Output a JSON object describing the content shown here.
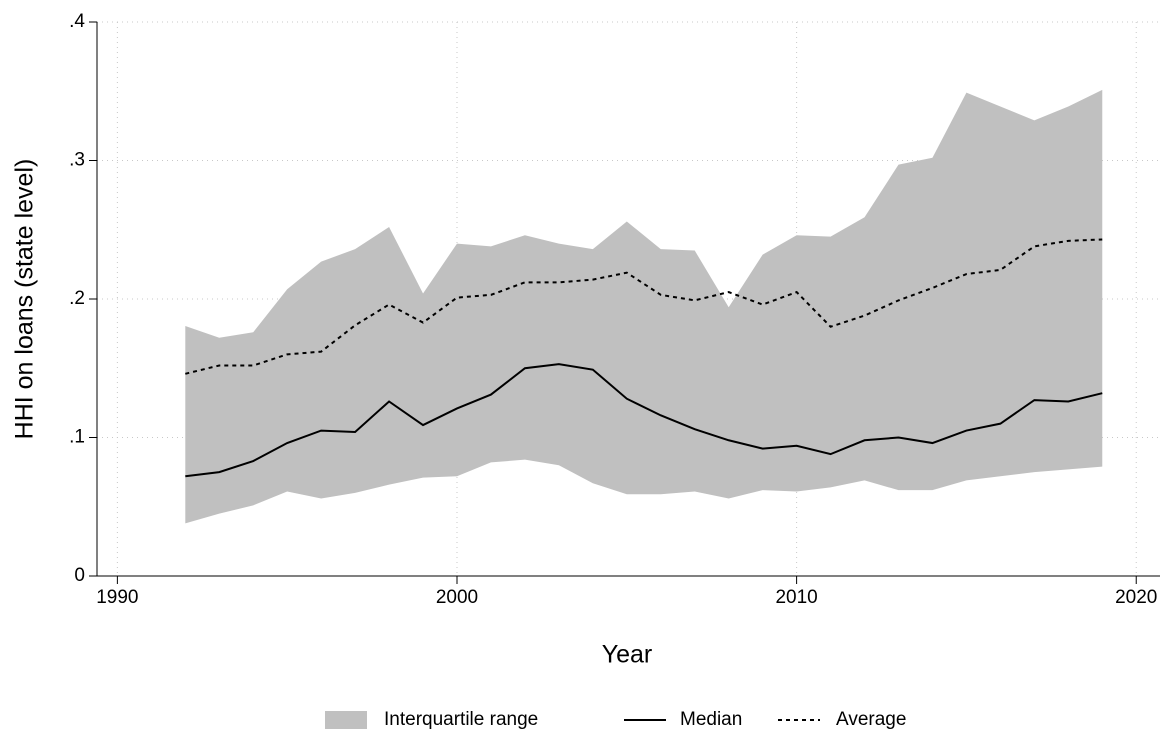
{
  "chart_data": {
    "type": "line",
    "x_label": "Year",
    "y_label": "HHI on loans (state level)",
    "x": [
      1992,
      1993,
      1994,
      1995,
      1996,
      1997,
      1998,
      1999,
      2000,
      2001,
      2002,
      2003,
      2004,
      2005,
      2006,
      2007,
      2008,
      2009,
      2010,
      2011,
      2012,
      2013,
      2014,
      2015,
      2016,
      2017,
      2018,
      2019
    ],
    "series": [
      {
        "name": "Interquartile range",
        "type": "band",
        "color": "#c0c0c0",
        "high": [
          0.1805,
          0.172,
          0.176,
          0.207,
          0.227,
          0.236,
          0.252,
          0.204,
          0.24,
          0.238,
          0.246,
          0.24,
          0.236,
          0.256,
          0.236,
          0.235,
          0.194,
          0.232,
          0.246,
          0.245,
          0.259,
          0.297,
          0.302,
          0.349,
          0.339,
          0.329,
          0.339,
          0.351
        ],
        "low": [
          0.038,
          0.045,
          0.051,
          0.061,
          0.056,
          0.06,
          0.066,
          0.071,
          0.072,
          0.082,
          0.084,
          0.08,
          0.067,
          0.059,
          0.059,
          0.061,
          0.056,
          0.062,
          0.061,
          0.064,
          0.069,
          0.062,
          0.062,
          0.069,
          0.072,
          0.075,
          0.077,
          0.079
        ]
      },
      {
        "name": "Median",
        "type": "line",
        "color": "#000000",
        "linestyle": "solid",
        "values": [
          0.072,
          0.075,
          0.083,
          0.096,
          0.105,
          0.104,
          0.126,
          0.109,
          0.121,
          0.131,
          0.15,
          0.153,
          0.149,
          0.128,
          0.116,
          0.106,
          0.098,
          0.092,
          0.094,
          0.088,
          0.098,
          0.1,
          0.096,
          0.105,
          0.11,
          0.127,
          0.126,
          0.132
        ]
      },
      {
        "name": "Average",
        "type": "line",
        "color": "#000000",
        "linestyle": "dotted",
        "values": [
          0.146,
          0.152,
          0.152,
          0.16,
          0.162,
          0.181,
          0.196,
          0.183,
          0.201,
          0.203,
          0.212,
          0.212,
          0.214,
          0.219,
          0.203,
          0.199,
          0.205,
          0.196,
          0.205,
          0.18,
          0.188,
          0.199,
          0.208,
          0.218,
          0.221,
          0.238,
          0.242,
          0.243
        ]
      }
    ],
    "xlim": [
      1989.4,
      2020.7
    ],
    "xticks": [
      1990,
      2000,
      2010,
      2020
    ],
    "ylim": [
      0,
      0.4
    ],
    "yticks": [
      0,
      {
        "value": 0.1,
        "label": ".1"
      },
      {
        "value": 0.2,
        "label": ".2"
      },
      {
        "value": 0.3,
        "label": ".3"
      },
      {
        "value": 0.4,
        "label": ".4"
      }
    ],
    "grid": true,
    "legend": "bottom"
  }
}
